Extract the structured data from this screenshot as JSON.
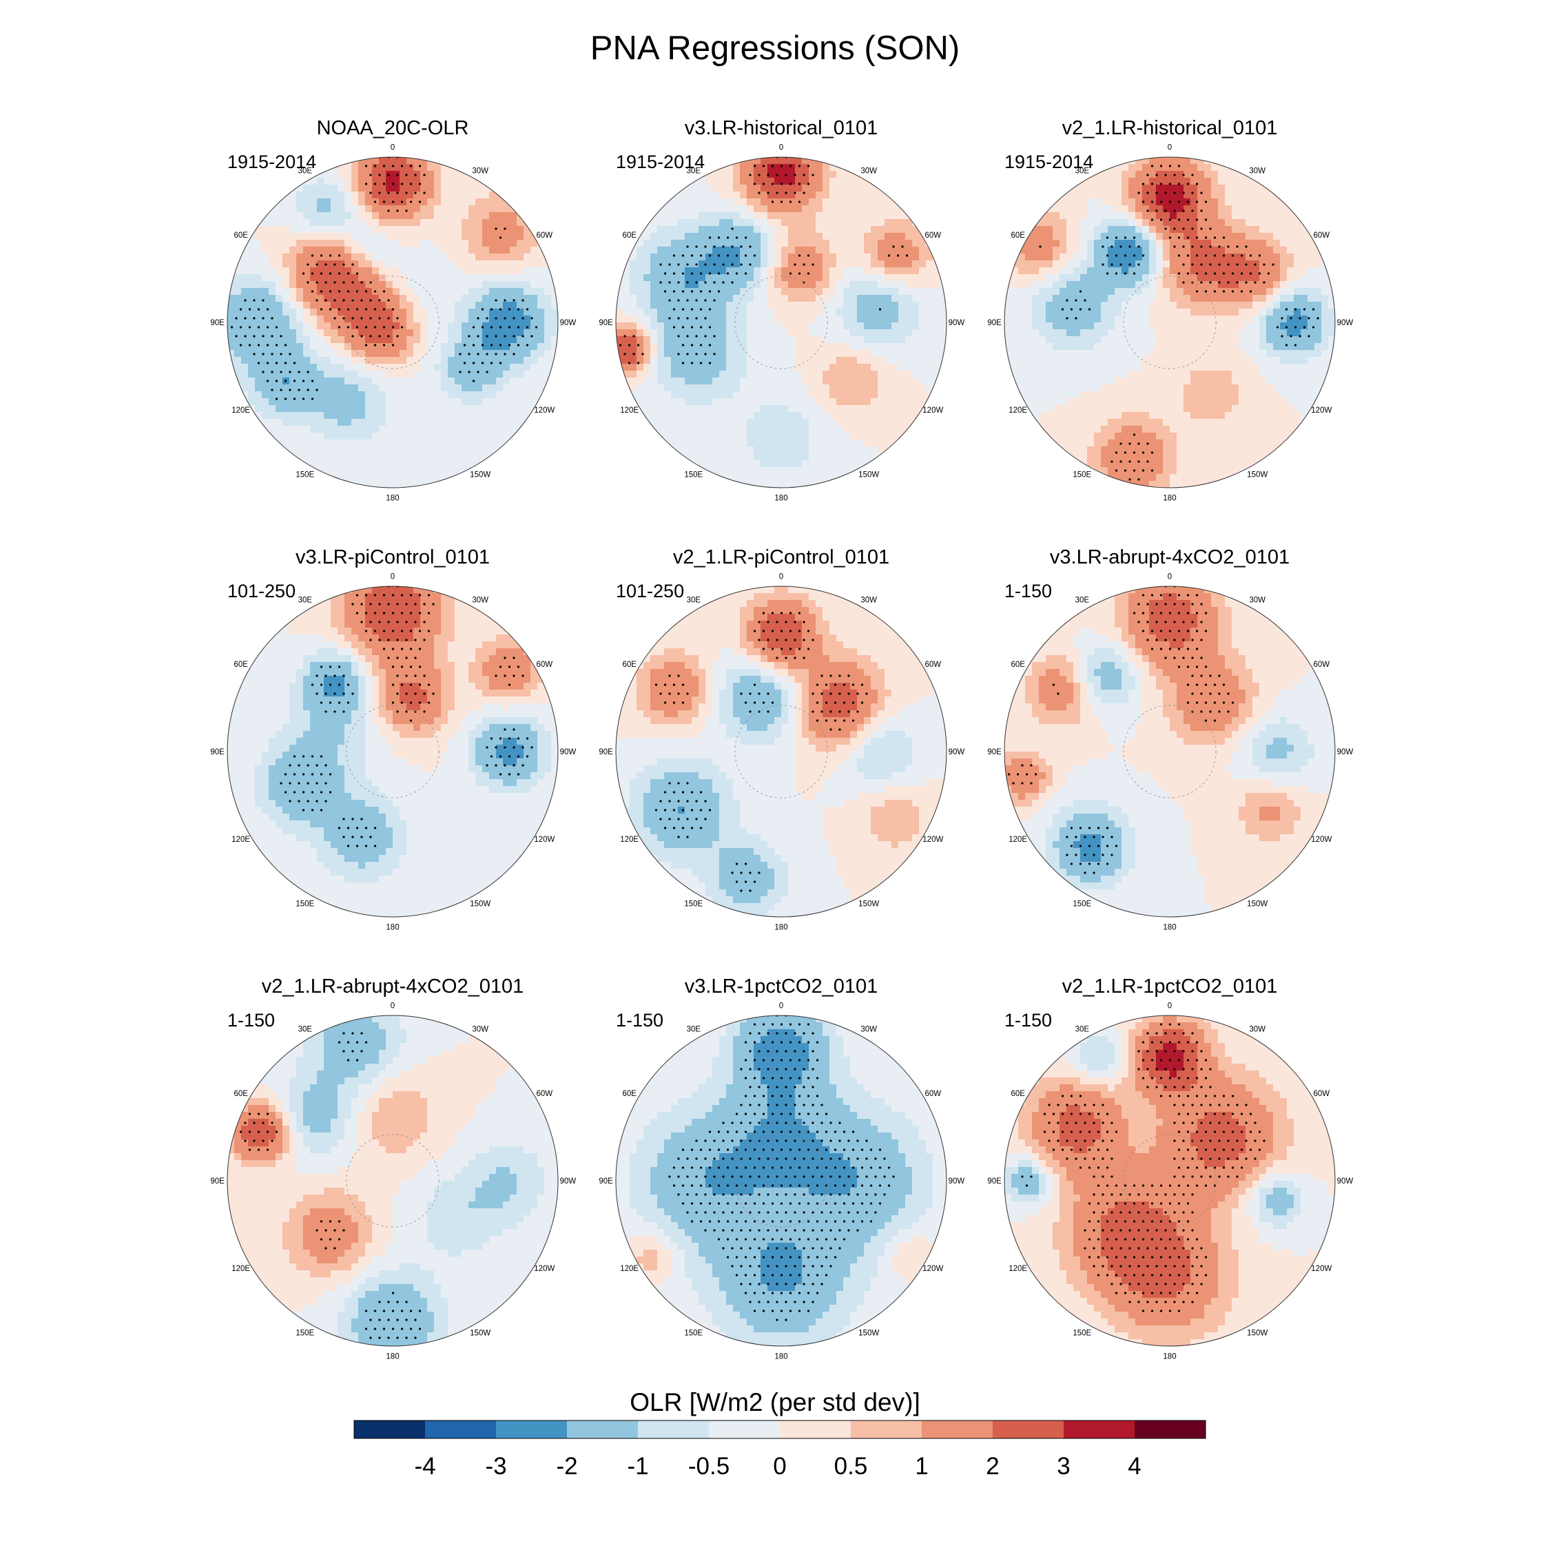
{
  "title": "PNA Regressions (SON)",
  "longitude_labels": [
    "180",
    "150E",
    "120E",
    "90E",
    "60E",
    "30E",
    "0",
    "30W",
    "60W",
    "90W",
    "120W",
    "150W"
  ],
  "colorbar": {
    "title": "OLR [W/m2 (per std dev)]",
    "colors": [
      "#08306b",
      "#2166ac",
      "#4393c3",
      "#92c5de",
      "#d1e5f0",
      "#e8eef4",
      "#fbe6dc",
      "#f7bfa6",
      "#eb9374",
      "#d6604d",
      "#b2182b",
      "#67001f"
    ],
    "labels": [
      "-4",
      "-3",
      "-2",
      "-1",
      "-0.5",
      "0",
      "0.5",
      "1",
      "2",
      "3",
      "4"
    ]
  },
  "chart_data": [
    {
      "type": "heatmap",
      "projection": "north-polar-stereographic",
      "title": "NOAA_20C-OLR",
      "period": "1915-2014",
      "variable": "OLR regression on PNA index",
      "units": "W/m2 (per std dev)",
      "range": [
        -4,
        4
      ]
    },
    {
      "type": "heatmap",
      "projection": "north-polar-stereographic",
      "title": "v3.LR-historical_0101",
      "period": "1915-2014",
      "variable": "OLR regression on PNA index",
      "units": "W/m2 (per std dev)",
      "range": [
        -4,
        4
      ]
    },
    {
      "type": "heatmap",
      "projection": "north-polar-stereographic",
      "title": "v2_1.LR-historical_0101",
      "period": "1915-2014",
      "variable": "OLR regression on PNA index",
      "units": "W/m2 (per std dev)",
      "range": [
        -4,
        4
      ]
    },
    {
      "type": "heatmap",
      "projection": "north-polar-stereographic",
      "title": "v3.LR-piControl_0101",
      "period": "101-250",
      "variable": "OLR regression on PNA index",
      "units": "W/m2 (per std dev)",
      "range": [
        -4,
        4
      ]
    },
    {
      "type": "heatmap",
      "projection": "north-polar-stereographic",
      "title": "v2_1.LR-piControl_0101",
      "period": "101-250",
      "variable": "OLR regression on PNA index",
      "units": "W/m2 (per std dev)",
      "range": [
        -4,
        4
      ]
    },
    {
      "type": "heatmap",
      "projection": "north-polar-stereographic",
      "title": "v3.LR-abrupt-4xCO2_0101",
      "period": "1-150",
      "variable": "OLR regression on PNA index",
      "units": "W/m2 (per std dev)",
      "range": [
        -4,
        4
      ]
    },
    {
      "type": "heatmap",
      "projection": "north-polar-stereographic",
      "title": "v2_1.LR-abrupt-4xCO2_0101",
      "period": "1-150",
      "variable": "OLR regression on PNA index",
      "units": "W/m2 (per std dev)",
      "range": [
        -4,
        4
      ]
    },
    {
      "type": "heatmap",
      "projection": "north-polar-stereographic",
      "title": "v3.LR-1pctCO2_0101",
      "period": "1-150",
      "variable": "OLR regression on PNA index",
      "units": "W/m2 (per std dev)",
      "range": [
        -4,
        4
      ]
    },
    {
      "type": "heatmap",
      "projection": "north-polar-stereographic",
      "title": "v2_1.LR-1pctCO2_0101",
      "period": "1-150",
      "variable": "OLR regression on PNA index",
      "units": "W/m2 (per std dev)",
      "range": [
        -4,
        4
      ]
    }
  ]
}
